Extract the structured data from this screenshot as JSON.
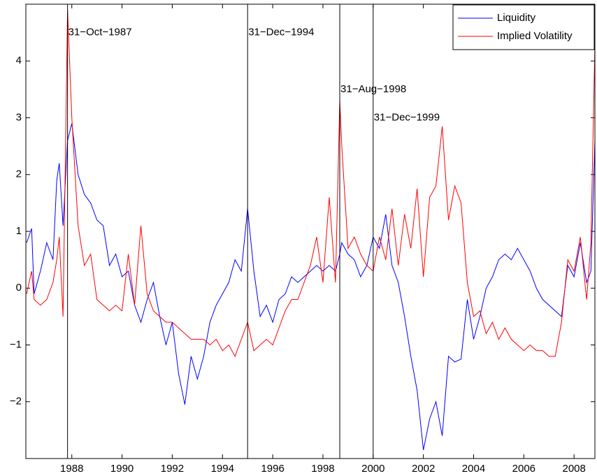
{
  "chart_data": {
    "type": "line",
    "x": [
      1986.2,
      1986.4,
      1986.5,
      1986.75,
      1987,
      1987.25,
      1987.4,
      1987.5,
      1987.65,
      1987.83,
      1988,
      1988.25,
      1988.5,
      1988.75,
      1989,
      1989.25,
      1989.5,
      1989.75,
      1990,
      1990.25,
      1990.5,
      1990.75,
      1991,
      1991.25,
      1991.5,
      1991.75,
      1992,
      1992.25,
      1992.5,
      1992.75,
      1993,
      1993.25,
      1993.5,
      1993.75,
      1994,
      1994.25,
      1994.5,
      1994.75,
      1995,
      1995.25,
      1995.5,
      1995.75,
      1996,
      1996.25,
      1996.5,
      1996.75,
      1997,
      1997.25,
      1997.5,
      1997.75,
      1998,
      1998.25,
      1998.5,
      1998.67,
      1998.75,
      1999,
      1999.25,
      1999.5,
      1999.75,
      2000,
      2000.25,
      2000.5,
      2000.75,
      2001,
      2001.25,
      2001.5,
      2001.75,
      2002,
      2002.25,
      2002.5,
      2002.75,
      2003,
      2003.25,
      2003.5,
      2003.75,
      2004,
      2004.25,
      2004.5,
      2004.75,
      2005,
      2005.25,
      2005.5,
      2005.75,
      2006,
      2006.25,
      2006.5,
      2006.75,
      2007,
      2007.25,
      2007.5,
      2007.75,
      2008,
      2008.25,
      2008.5,
      2008.67,
      2008.83
    ],
    "series": [
      {
        "name": "Liquidity",
        "color": "#0000ff",
        "values": [
          0.8,
          1.05,
          -0.1,
          0.3,
          0.8,
          0.5,
          1.9,
          2.2,
          1.1,
          2.6,
          2.9,
          2.0,
          1.65,
          1.5,
          1.2,
          1.1,
          0.4,
          0.6,
          0.2,
          0.3,
          -0.3,
          -0.6,
          -0.2,
          0.1,
          -0.5,
          -1.0,
          -0.6,
          -1.5,
          -2.05,
          -1.2,
          -1.6,
          -1.2,
          -0.6,
          -0.3,
          -0.1,
          0.1,
          0.5,
          0.3,
          1.4,
          0.3,
          -0.5,
          -0.3,
          -0.6,
          -0.2,
          -0.1,
          0.2,
          0.1,
          0.2,
          0.3,
          0.4,
          0.3,
          0.4,
          0.3,
          0.6,
          0.8,
          0.6,
          0.5,
          0.2,
          0.4,
          0.9,
          0.7,
          1.3,
          0.4,
          0.1,
          -0.5,
          -1.2,
          -1.8,
          -2.85,
          -2.3,
          -2.0,
          -2.6,
          -1.2,
          -1.3,
          -1.25,
          -0.2,
          -0.9,
          -0.5,
          0.0,
          0.2,
          0.5,
          0.6,
          0.5,
          0.7,
          0.5,
          0.3,
          0.0,
          -0.2,
          -0.3,
          -0.4,
          -0.5,
          0.4,
          0.2,
          0.8,
          0.1,
          0.3,
          2.6
        ]
      },
      {
        "name": "Implied Volatility",
        "color": "#ff0000",
        "values": [
          -0.1,
          0.3,
          -0.2,
          -0.3,
          -0.2,
          0.1,
          0.5,
          0.9,
          -0.5,
          4.9,
          3.0,
          1.1,
          0.4,
          0.6,
          -0.2,
          -0.3,
          -0.4,
          -0.3,
          -0.4,
          0.6,
          -0.3,
          1.1,
          -0.1,
          -0.4,
          -0.5,
          -0.6,
          -0.6,
          -0.7,
          -0.8,
          -0.9,
          -0.9,
          -0.9,
          -1.0,
          -0.9,
          -1.1,
          -1.0,
          -1.2,
          -0.9,
          -0.6,
          -1.1,
          -1.0,
          -0.9,
          -1.0,
          -0.7,
          -0.4,
          -0.2,
          -0.2,
          0.1,
          0.4,
          0.9,
          0.1,
          1.6,
          0.1,
          3.3,
          2.5,
          0.7,
          0.9,
          0.6,
          0.4,
          0.3,
          0.9,
          0.5,
          1.4,
          0.4,
          1.3,
          0.7,
          1.75,
          0.2,
          1.6,
          1.8,
          2.85,
          1.2,
          1.8,
          1.5,
          0.1,
          -0.5,
          -0.4,
          -0.8,
          -0.6,
          -0.9,
          -0.7,
          -0.9,
          -1.0,
          -1.1,
          -1.0,
          -1.1,
          -1.1,
          -1.2,
          -1.2,
          -0.6,
          0.5,
          0.3,
          0.9,
          -0.2,
          0.8,
          4.3
        ]
      }
    ],
    "annotations": [
      {
        "x": 1987.83,
        "y": 4.5,
        "text": "31−Oct−1987"
      },
      {
        "x": 1995.0,
        "y": 4.5,
        "text": "31−Dec−1994"
      },
      {
        "x": 1998.67,
        "y": 3.5,
        "text": "31−Aug−1998"
      },
      {
        "x": 2000.0,
        "y": 3.0,
        "text": "31−Dec−1999"
      }
    ],
    "xlim": [
      1986.17,
      2008.83
    ],
    "xticks": [
      1988,
      1990,
      1992,
      1994,
      1996,
      1998,
      2000,
      2002,
      2004,
      2006,
      2008
    ],
    "ylim": [
      -3,
      5
    ],
    "yticks": [
      {
        "value": -2,
        "label": "−2"
      },
      {
        "value": -1,
        "label": "−1"
      },
      0,
      1,
      2,
      3,
      4
    ],
    "legend": "upper right"
  }
}
